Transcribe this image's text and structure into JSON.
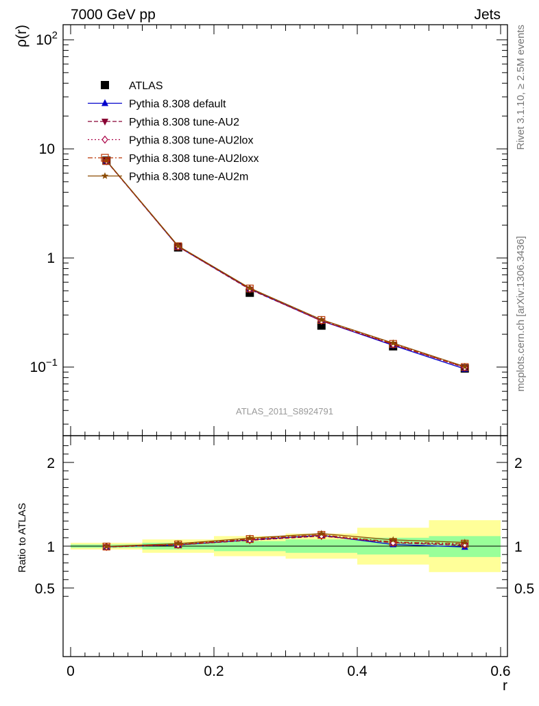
{
  "header": {
    "left_label": "7000 GeV pp",
    "right_label": "Jets"
  },
  "side_labels": {
    "rivet": "Rivet 3.1.10, ≥ 2.5M events",
    "mcplots": "mcplots.cern.ch [arXiv:1306.3436]"
  },
  "analysis_label": "ATLAS_2011_S8924791",
  "colors": {
    "atlas": "#000000",
    "default": "#0000cc",
    "au2": "#880033",
    "au2lox": "#aa0044",
    "au2loxx": "#bb3300",
    "au2m": "#8b4a00",
    "band_stat": "#99ff99",
    "band_total": "#ffff99"
  },
  "chart_data": [
    {
      "type": "line",
      "panel": "main",
      "ylabel": "ρ(r)",
      "xlabel": "",
      "yscale": "log",
      "ylim": [
        0.025,
        130
      ],
      "xlim": [
        -0.02,
        0.6
      ],
      "yticks": [
        {
          "value": 100,
          "base": "10",
          "exp": "2"
        },
        {
          "value": 10,
          "base": "10",
          "exp": ""
        },
        {
          "value": 1,
          "base": "1",
          "exp": ""
        },
        {
          "value": 0.1,
          "base": "10",
          "exp": "−1"
        }
      ],
      "legend_position": "top-left",
      "x": [
        0.05,
        0.15,
        0.25,
        0.35,
        0.45,
        0.55
      ],
      "series": [
        {
          "name": "ATLAS",
          "key": "atlas",
          "marker": "square",
          "line": "none",
          "values": [
            7.8,
            1.25,
            0.48,
            0.24,
            0.155,
            0.097
          ]
        },
        {
          "name": "Pythia 8.308 default",
          "key": "default",
          "marker": "triangle-up",
          "line": "solid",
          "values": [
            7.75,
            1.27,
            0.52,
            0.265,
            0.158,
            0.096
          ]
        },
        {
          "name": "Pythia 8.308 tune-AU2",
          "key": "au2",
          "marker": "triangle-down",
          "line": "dashed",
          "values": [
            7.7,
            1.27,
            0.515,
            0.265,
            0.161,
            0.099
          ]
        },
        {
          "name": "Pythia 8.308 tune-AU2lox",
          "key": "au2lox",
          "marker": "diamond-open",
          "line": "dotted",
          "values": [
            7.75,
            1.27,
            0.52,
            0.265,
            0.161,
            0.099
          ]
        },
        {
          "name": "Pythia 8.308 tune-AU2loxx",
          "key": "au2loxx",
          "marker": "square-open",
          "line": "dashdot",
          "values": [
            7.75,
            1.28,
            0.525,
            0.27,
            0.163,
            0.1
          ]
        },
        {
          "name": "Pythia 8.308 tune-AU2m",
          "key": "au2m",
          "marker": "star",
          "line": "solid",
          "values": [
            7.8,
            1.29,
            0.53,
            0.272,
            0.166,
            0.101
          ]
        }
      ]
    },
    {
      "type": "line",
      "panel": "ratio",
      "ylabel": "Ratio to ATLAS",
      "xlabel": "r",
      "ylim": [
        0.4,
        2.3
      ],
      "xlim": [
        -0.02,
        0.6
      ],
      "yticks": [
        0.5,
        1,
        2
      ],
      "yticks_labels": [
        "0.5",
        "1",
        "2"
      ],
      "xticks": [
        0,
        0.2,
        0.4,
        0.6
      ],
      "xticks_labels": [
        "0",
        "0.2",
        "0.4",
        "0.6"
      ],
      "x": [
        0.05,
        0.15,
        0.25,
        0.35,
        0.45,
        0.55
      ],
      "bands": {
        "edges": [
          0,
          0.1,
          0.2,
          0.3,
          0.4,
          0.5,
          0.6
        ],
        "total": [
          [
            0.96,
            1.04
          ],
          [
            0.92,
            1.08
          ],
          [
            0.88,
            1.12
          ],
          [
            0.85,
            1.15
          ],
          [
            0.78,
            1.22
          ],
          [
            0.69,
            1.31
          ]
        ],
        "stat": [
          [
            0.98,
            1.02
          ],
          [
            0.96,
            1.04
          ],
          [
            0.94,
            1.06
          ],
          [
            0.92,
            1.08
          ],
          [
            0.9,
            1.1
          ],
          [
            0.87,
            1.12
          ]
        ]
      },
      "series": [
        {
          "name": "Pythia 8.308 default",
          "key": "default",
          "marker": "triangle-up",
          "line": "solid",
          "values": [
            0.993,
            1.015,
            1.075,
            1.13,
            1.02,
            0.99
          ]
        },
        {
          "name": "Pythia 8.308 tune-AU2",
          "key": "au2",
          "marker": "triangle-down",
          "line": "dashed",
          "values": [
            0.99,
            1.015,
            1.07,
            1.12,
            1.04,
            1.01
          ]
        },
        {
          "name": "Pythia 8.308 tune-AU2lox",
          "key": "au2lox",
          "marker": "diamond-open",
          "line": "dotted",
          "values": [
            0.993,
            1.015,
            1.075,
            1.125,
            1.04,
            1.02
          ]
        },
        {
          "name": "Pythia 8.308 tune-AU2loxx",
          "key": "au2loxx",
          "marker": "square-open",
          "line": "dashdot",
          "values": [
            0.995,
            1.02,
            1.085,
            1.135,
            1.05,
            1.03
          ]
        },
        {
          "name": "Pythia 8.308 tune-AU2m",
          "key": "au2m",
          "marker": "star",
          "line": "solid",
          "values": [
            0.997,
            1.03,
            1.095,
            1.15,
            1.075,
            1.045
          ]
        }
      ]
    }
  ]
}
